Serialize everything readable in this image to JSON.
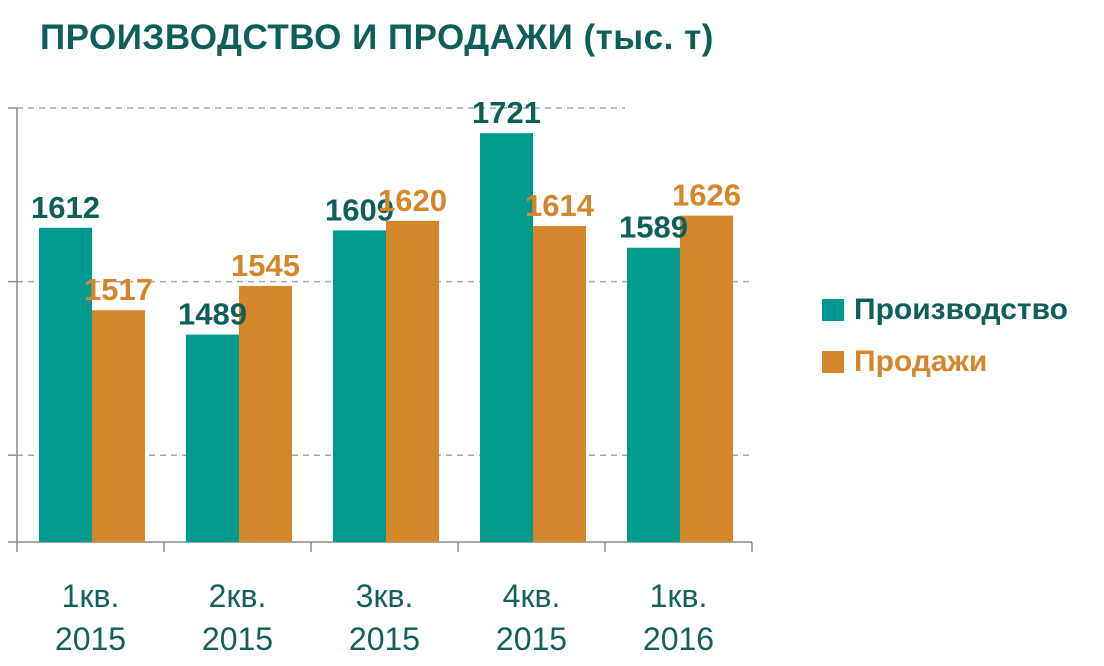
{
  "chart_data": {
    "type": "bar",
    "title": "ПРОИЗВОДСТВО И ПРОДАЖИ  (тыс. т)",
    "categories": [
      [
        "1кв.",
        "2015"
      ],
      [
        "2кв.",
        "2015"
      ],
      [
        "3кв.",
        "2015"
      ],
      [
        "4кв.",
        "2015"
      ],
      [
        "1кв.",
        "2016"
      ]
    ],
    "series": [
      {
        "name": "Производство",
        "color": "#009a8e",
        "label_color": "#0e5e5a",
        "values": [
          1612,
          1489,
          1609,
          1721,
          1589
        ]
      },
      {
        "name": "Продажи",
        "color": "#d4862a",
        "label_color": "#d4862a",
        "values": [
          1517,
          1545,
          1620,
          1614,
          1626
        ]
      }
    ],
    "ylim": [
      1250,
      1750
    ],
    "grid": true,
    "legend_position": "right"
  }
}
